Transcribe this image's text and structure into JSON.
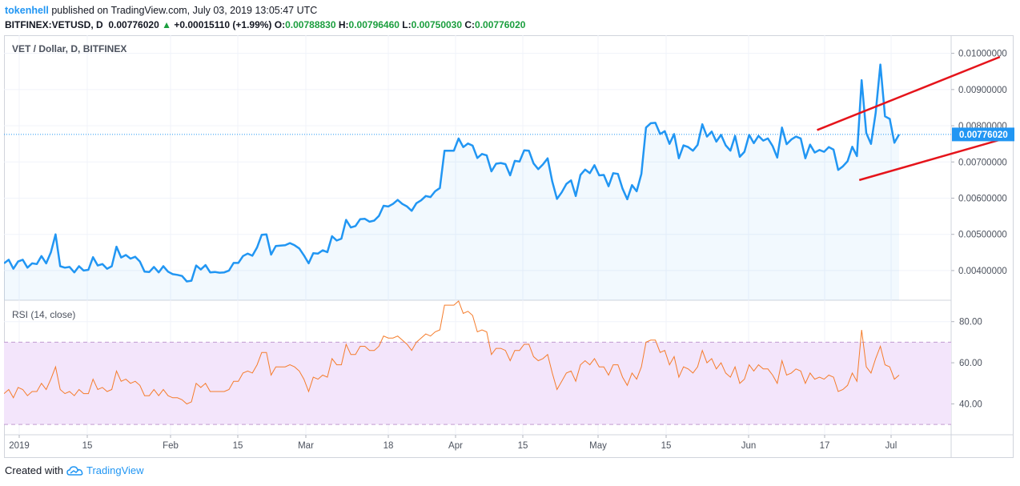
{
  "header": {
    "author": "tokenhell",
    "published_text": "published on TradingView.com, July 03, 2019 13:05:47 UTC"
  },
  "ohlc": {
    "symbol": "BITFINEX:VETUSD, D",
    "last": "0.00776020",
    "change": "+0.00015110 (+1.99%)",
    "open_label": "O:",
    "open": "0.00788830",
    "high_label": "H:",
    "high": "0.00796460",
    "low_label": "L:",
    "low": "0.00750030",
    "close_label": "C:",
    "close": "0.00776020"
  },
  "footer": {
    "created_with": "Created with",
    "brand": "TradingView"
  },
  "colors": {
    "price_line": "#2196f3",
    "trend_line": "#e5141b",
    "rsi_line": "#f57c2b",
    "rsi_band": "#f3e5fb"
  },
  "chart_data": {
    "type": "line",
    "price_panel": {
      "title": "VET / Dollar, D, BITFINEX",
      "last_price_label": "0.00776020",
      "y_ticks": [
        "0.01000000",
        "0.00900000",
        "0.00800000",
        "0.00700000",
        "0.00600000",
        "0.00500000",
        "0.00400000"
      ],
      "ylim": [
        0.00318,
        0.0105
      ],
      "x_ticks": [
        "2019",
        "15",
        "Feb",
        "15",
        "Mar",
        "18",
        "Apr",
        "15",
        "May",
        "15",
        "Jun",
        "17",
        "Jul"
      ],
      "series": [
        {
          "values": [
            0.0042,
            0.0043,
            0.00405,
            0.00425,
            0.0043,
            0.00408,
            0.0042,
            0.00418,
            0.0044,
            0.0042,
            0.0045,
            0.005,
            0.00412,
            0.00408,
            0.0041,
            0.00395,
            0.00412,
            0.004,
            0.00402,
            0.00437,
            0.00414,
            0.00418,
            0.00405,
            0.00412,
            0.00466,
            0.00436,
            0.00443,
            0.00433,
            0.00438,
            0.00425,
            0.00397,
            0.00396,
            0.0041,
            0.00395,
            0.00412,
            0.00397,
            0.0039,
            0.00388,
            0.00385,
            0.0037,
            0.00372,
            0.00414,
            0.00403,
            0.00415,
            0.00395,
            0.00396,
            0.00394,
            0.00395,
            0.004,
            0.00421,
            0.00421,
            0.0044,
            0.00447,
            0.00441,
            0.00464,
            0.00499,
            0.005,
            0.00444,
            0.00468,
            0.00469,
            0.0047,
            0.00476,
            0.0047,
            0.00461,
            0.00442,
            0.0042,
            0.00448,
            0.00447,
            0.00456,
            0.00451,
            0.00495,
            0.00483,
            0.00488,
            0.0054,
            0.00519,
            0.00523,
            0.00542,
            0.00543,
            0.00535,
            0.00538,
            0.00551,
            0.00579,
            0.00577,
            0.00584,
            0.00595,
            0.00584,
            0.00577,
            0.00565,
            0.00586,
            0.00594,
            0.00606,
            0.00603,
            0.00619,
            0.00628,
            0.00731,
            0.00731,
            0.00731,
            0.00765,
            0.00741,
            0.00751,
            0.00745,
            0.00711,
            0.00722,
            0.00718,
            0.00674,
            0.00695,
            0.00697,
            0.00694,
            0.00663,
            0.00703,
            0.00701,
            0.00732,
            0.00731,
            0.00696,
            0.0068,
            0.00693,
            0.0071,
            0.00646,
            0.00598,
            0.00616,
            0.00639,
            0.00649,
            0.00606,
            0.00664,
            0.00679,
            0.00669,
            0.00691,
            0.00663,
            0.00664,
            0.00633,
            0.00669,
            0.00667,
            0.00626,
            0.00597,
            0.00636,
            0.00619,
            0.00667,
            0.00795,
            0.00807,
            0.00808,
            0.00777,
            0.00785,
            0.0075,
            0.00777,
            0.0071,
            0.00746,
            0.00741,
            0.00731,
            0.00747,
            0.00804,
            0.0077,
            0.00784,
            0.00756,
            0.00775,
            0.00746,
            0.00731,
            0.00772,
            0.00714,
            0.00728,
            0.00775,
            0.00752,
            0.00772,
            0.00759,
            0.00765,
            0.00744,
            0.00712,
            0.00795,
            0.00749,
            0.00762,
            0.0077,
            0.00765,
            0.0071,
            0.00748,
            0.00726,
            0.00733,
            0.00728,
            0.00741,
            0.00734,
            0.00678,
            0.00688,
            0.00702,
            0.00742,
            0.00716,
            0.00926,
            0.0078,
            0.0075,
            0.00835,
            0.00969,
            0.00826,
            0.00819,
            0.00753,
            0.00776
          ]
        }
      ],
      "trend_lines": [
        {
          "from": [
            173.5,
            0.00788
          ],
          "to": [
            212.5,
            0.0099
          ]
        },
        {
          "from": [
            182.5,
            0.0065
          ],
          "to": [
            222.5,
            0.00798
          ]
        }
      ]
    },
    "rsi_panel": {
      "title": "RSI (14, close)",
      "y_ticks": [
        "80.00",
        "60.00",
        "40.00"
      ],
      "ylim": [
        25,
        90
      ],
      "band": [
        30,
        70
      ],
      "series": [
        {
          "values": [
            45,
            47,
            43,
            48,
            47,
            44,
            46,
            46,
            50,
            47,
            52,
            58,
            47,
            45,
            46,
            44,
            47,
            45,
            45,
            52,
            47,
            48,
            46,
            47,
            56,
            51,
            52,
            50,
            51,
            49,
            44,
            44,
            47,
            44,
            47,
            44,
            43,
            43,
            42,
            40,
            41,
            50,
            48,
            50,
            46,
            46,
            46,
            46,
            47,
            51,
            51,
            55,
            56,
            55,
            59,
            65,
            65,
            54,
            58,
            58,
            58,
            59,
            58,
            56,
            52,
            46,
            53,
            52,
            54,
            53,
            62,
            59,
            59,
            69,
            64,
            64,
            68,
            68,
            66,
            66,
            68,
            73,
            72,
            72,
            73,
            71,
            69,
            66,
            70,
            72,
            74,
            73,
            75,
            76,
            88,
            88,
            88,
            90,
            84,
            85,
            83,
            75,
            76,
            75,
            64,
            67,
            67,
            66,
            61,
            66,
            66,
            69,
            69,
            63,
            61,
            62,
            64,
            55,
            47,
            51,
            55,
            56,
            51,
            59,
            61,
            59,
            62,
            58,
            58,
            54,
            59,
            59,
            53,
            49,
            55,
            52,
            58,
            70,
            71,
            71,
            65,
            66,
            59,
            63,
            53,
            58,
            57,
            55,
            58,
            66,
            60,
            62,
            57,
            60,
            55,
            53,
            58,
            50,
            52,
            59,
            56,
            59,
            57,
            57,
            54,
            50,
            61,
            54,
            55,
            57,
            56,
            50,
            55,
            52,
            53,
            52,
            54,
            53,
            46,
            47,
            49,
            55,
            51,
            76,
            58,
            55,
            62,
            68,
            59,
            58,
            52,
            54
          ]
        }
      ]
    }
  }
}
